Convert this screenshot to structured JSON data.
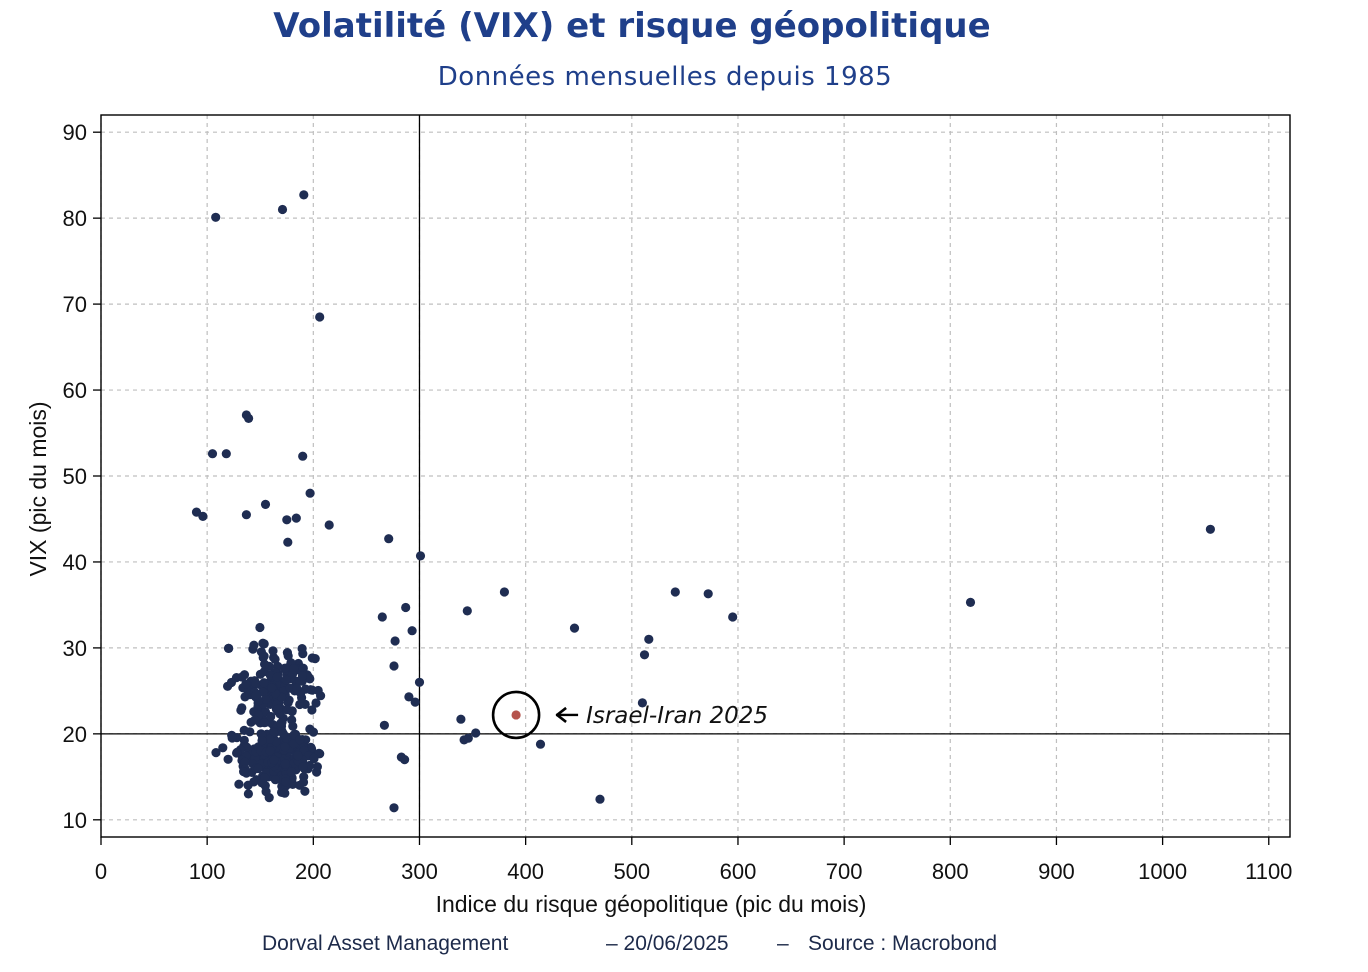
{
  "header": {
    "title": "Volatilité (VIX) et risque géopolitique",
    "subtitle": "Données mensuelles depuis 1985"
  },
  "footer": {
    "author": "Dorval Asset Management",
    "date": "– 20/06/2025",
    "separator": "–",
    "source": "Source : Macrobond"
  },
  "colors": {
    "points": "#1f2d52",
    "highlight": "#b5534c",
    "title": "#1f3f8a",
    "grid": "#bfbfbf"
  },
  "chart_data": {
    "type": "scatter",
    "title": "Volatilité (VIX) et risque géopolitique",
    "subtitle": "Données mensuelles depuis 1985",
    "xlabel": "Indice du risque géopolitique (pic du mois)",
    "ylabel": "VIX (pic du mois)",
    "xlim": [
      0,
      1120
    ],
    "ylim": [
      8,
      92
    ],
    "xticks": [
      0,
      100,
      200,
      300,
      400,
      500,
      600,
      700,
      800,
      900,
      1000,
      1100
    ],
    "yticks": [
      10,
      20,
      30,
      40,
      50,
      60,
      70,
      80,
      90
    ],
    "grid": true,
    "reference_lines": {
      "x": 300,
      "y": 20
    },
    "annotation": {
      "text": "Israel-Iran 2025",
      "x": 391,
      "y": 22.2
    },
    "highlight": {
      "x": 391,
      "y": 22.2
    },
    "notable_points": [
      [
        108,
        80.1
      ],
      [
        171,
        81.0
      ],
      [
        191,
        82.7
      ],
      [
        206,
        68.5
      ],
      [
        137,
        57.1
      ],
      [
        139,
        56.7
      ],
      [
        105,
        52.6
      ],
      [
        118,
        52.6
      ],
      [
        190,
        52.3
      ],
      [
        197,
        48.0
      ],
      [
        155,
        46.7
      ],
      [
        90,
        45.8
      ],
      [
        96,
        45.3
      ],
      [
        137,
        45.5
      ],
      [
        175,
        44.9
      ],
      [
        184,
        45.1
      ],
      [
        215,
        44.3
      ],
      [
        271,
        42.7
      ],
      [
        176,
        42.3
      ],
      [
        301,
        40.7
      ],
      [
        1045,
        43.8
      ],
      [
        819,
        35.3
      ],
      [
        541,
        36.5
      ],
      [
        572,
        36.3
      ],
      [
        595,
        33.6
      ],
      [
        380,
        36.5
      ],
      [
        345,
        34.3
      ],
      [
        446,
        32.3
      ],
      [
        516,
        31.0
      ],
      [
        512,
        29.2
      ],
      [
        510,
        23.6
      ],
      [
        339,
        21.7
      ],
      [
        342,
        19.3
      ],
      [
        346,
        19.5
      ],
      [
        353,
        20.1
      ],
      [
        414,
        18.8
      ],
      [
        470,
        12.4
      ],
      [
        300,
        26.0
      ],
      [
        287,
        34.7
      ],
      [
        293,
        32.0
      ],
      [
        276,
        27.9
      ],
      [
        276,
        11.4
      ],
      [
        283,
        17.3
      ],
      [
        286,
        17.0
      ],
      [
        265,
        33.6
      ],
      [
        267,
        21.0
      ],
      [
        290,
        24.3
      ],
      [
        296,
        23.7
      ],
      [
        277,
        30.8
      ]
    ],
    "cluster": {
      "description": "monthly observations",
      "count": 420,
      "x_range": [
        68,
        300
      ],
      "y_range": [
        11,
        40
      ]
    }
  }
}
